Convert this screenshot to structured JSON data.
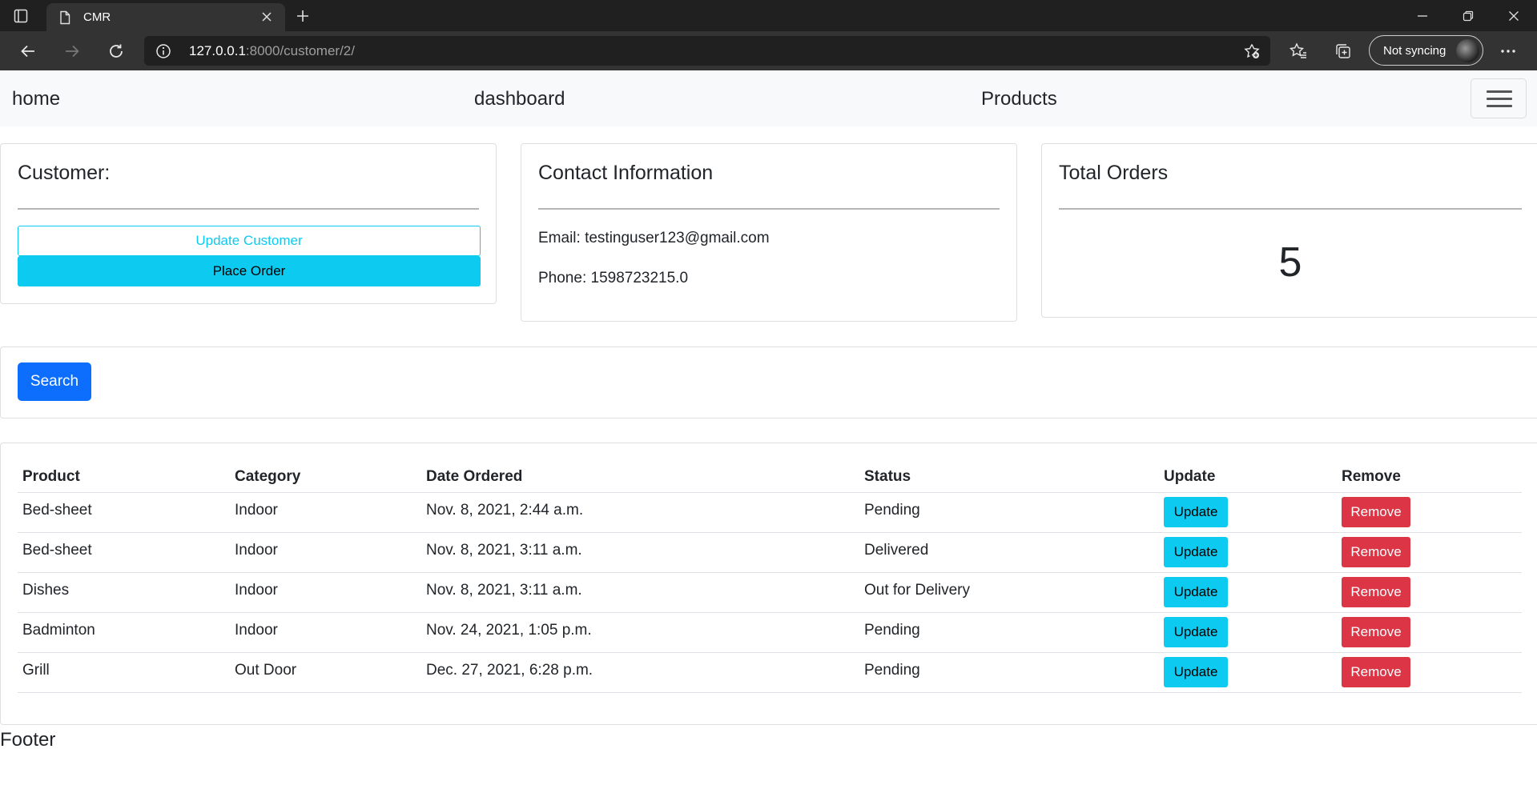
{
  "browser": {
    "tab_title": "CMR",
    "address_host": "127.0.0.1",
    "address_rest": ":8000/customer/2/",
    "sync_label": "Not syncing"
  },
  "navbar": {
    "home": "home",
    "dashboard": "dashboard",
    "products": "Products"
  },
  "customer_card": {
    "title": "Customer:",
    "update_button": "Update Customer",
    "place_order_button": "Place Order"
  },
  "contact_card": {
    "title": "Contact Information",
    "email": "Email: testinguser123@gmail.com",
    "phone": "Phone: 1598723215.0"
  },
  "orders_card": {
    "title": "Total Orders",
    "count": "5"
  },
  "search": {
    "button": "Search"
  },
  "orders_table": {
    "headers": [
      "Product",
      "Category",
      "Date Ordered",
      "Status",
      "Update",
      "Remove"
    ],
    "rows": [
      {
        "product": "Bed-sheet",
        "category": "Indoor",
        "date": "Nov. 8, 2021, 2:44 a.m.",
        "status": "Pending",
        "update": "Update",
        "remove": "Remove"
      },
      {
        "product": "Bed-sheet",
        "category": "Indoor",
        "date": "Nov. 8, 2021, 3:11 a.m.",
        "status": "Delivered",
        "update": "Update",
        "remove": "Remove"
      },
      {
        "product": "Dishes",
        "category": "Indoor",
        "date": "Nov. 8, 2021, 3:11 a.m.",
        "status": "Out for Delivery",
        "update": "Update",
        "remove": "Remove"
      },
      {
        "product": "Badminton",
        "category": "Indoor",
        "date": "Nov. 24, 2021, 1:05 p.m.",
        "status": "Pending",
        "update": "Update",
        "remove": "Remove"
      },
      {
        "product": "Grill",
        "category": "Out Door",
        "date": "Dec. 27, 2021, 6:28 p.m.",
        "status": "Pending",
        "update": "Update",
        "remove": "Remove"
      }
    ]
  },
  "footer": "Footer",
  "colors": {
    "info": "#0dcaf0",
    "primary": "#0d6efd",
    "danger": "#dc3545",
    "navbar_bg": "#f8f9fa"
  },
  "icons": [
    "sidebar-toggle-icon",
    "page-icon",
    "close-icon",
    "plus-icon",
    "minimize-icon",
    "restore-icon",
    "window-close-icon",
    "back-arrow-icon",
    "forward-arrow-icon",
    "refresh-icon",
    "info-icon",
    "add-favorite-icon",
    "favorites-icon",
    "collections-icon",
    "more-icon",
    "hamburger-icon"
  ]
}
